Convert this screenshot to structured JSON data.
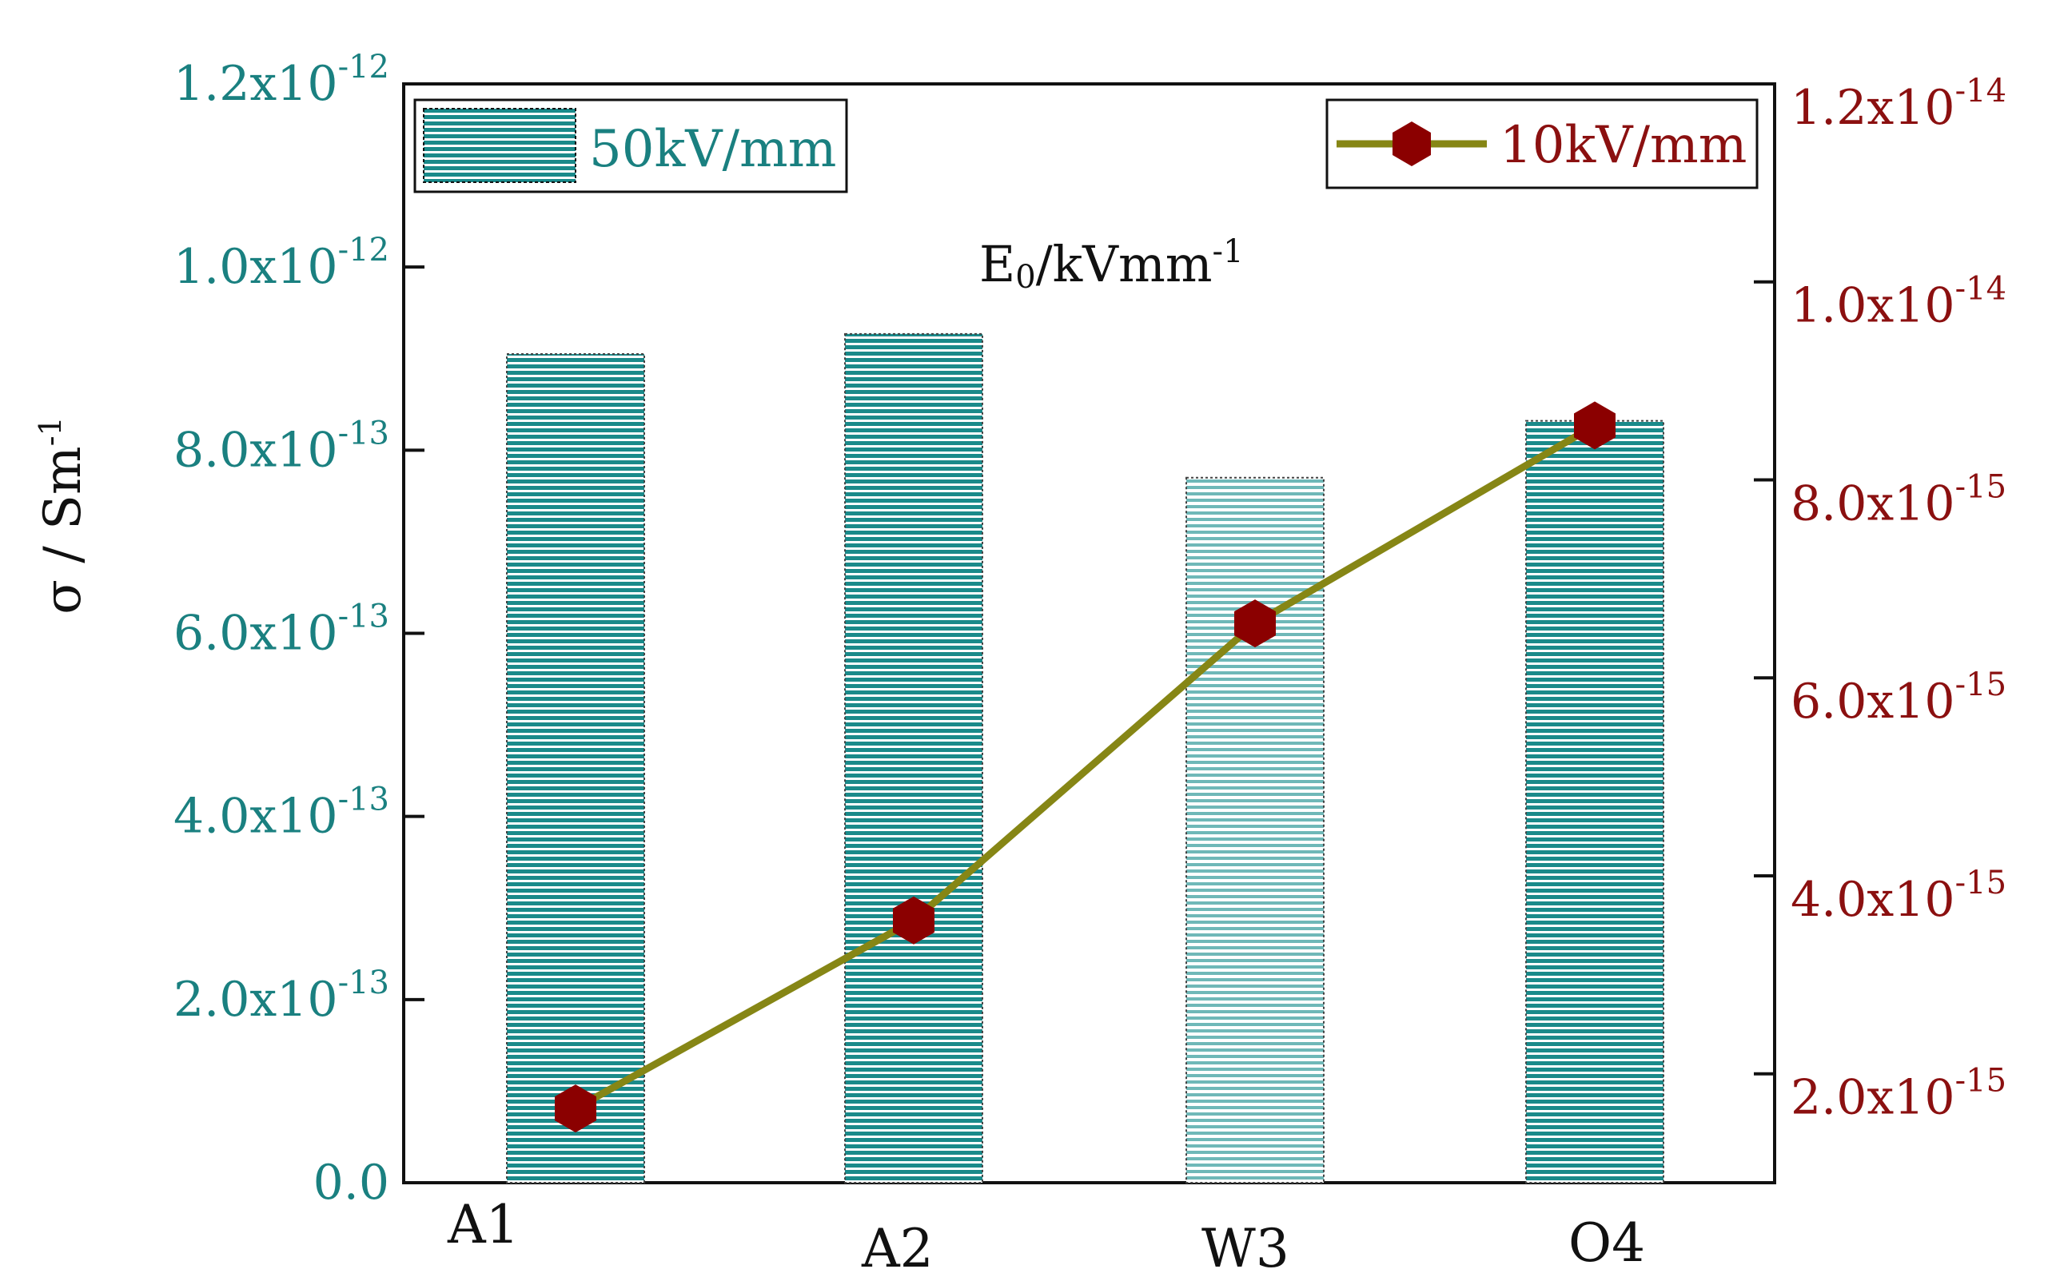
{
  "chart_data": {
    "type": "bar+line",
    "categories": [
      "A1",
      "A2",
      "W3",
      "O4"
    ],
    "series": [
      {
        "name": "50kV/mm",
        "type": "bar",
        "axis": "left",
        "values": [
          9.05e-13,
          9.27e-13,
          7.7e-13,
          8.32e-13
        ],
        "color": "#1a8a8a"
      },
      {
        "name": "10kV/mm",
        "type": "line",
        "axis": "right",
        "values": [
          1.65e-15,
          3.55e-15,
          6.55e-15,
          8.55e-15
        ],
        "line_color": "#868615",
        "marker_color": "#8b0000"
      }
    ],
    "title": "",
    "annotation": {
      "base": "E",
      "sub": "0",
      "rest": "/kVmm",
      "sup": "-1"
    },
    "ylabel": {
      "base": "σ / Sm",
      "sup": "-1"
    },
    "xlabel": "",
    "ylim_left": [
      0,
      1.2e-12
    ],
    "ylim_right": [
      9e-16,
      1.2e-14
    ],
    "yticks_left": [
      {
        "value": 0,
        "mantissa": "0.0",
        "exp": ""
      },
      {
        "value": 2e-13,
        "mantissa": "2.0x10",
        "exp": "-13"
      },
      {
        "value": 4e-13,
        "mantissa": "4.0x10",
        "exp": "-13"
      },
      {
        "value": 6e-13,
        "mantissa": "6.0x10",
        "exp": "-13"
      },
      {
        "value": 8e-13,
        "mantissa": "8.0x10",
        "exp": "-13"
      },
      {
        "value": 1e-12,
        "mantissa": "1.0x10",
        "exp": "-12"
      },
      {
        "value": 1.2e-12,
        "mantissa": "1.2x10",
        "exp": "-12"
      }
    ],
    "yticks_right": [
      {
        "value": 2e-15,
        "mantissa": "2.0x10",
        "exp": "-15"
      },
      {
        "value": 4e-15,
        "mantissa": "4.0x10",
        "exp": "-15"
      },
      {
        "value": 6e-15,
        "mantissa": "6.0x10",
        "exp": "-15"
      },
      {
        "value": 8e-15,
        "mantissa": "8.0x10",
        "exp": "-15"
      },
      {
        "value": 1e-14,
        "mantissa": "1.0x10",
        "exp": "-14"
      },
      {
        "value": 1.2e-14,
        "mantissa": "1.2x10",
        "exp": "-14"
      }
    ],
    "legend": {
      "left": {
        "label": "50kV/mm",
        "placement": "top-left"
      },
      "right": {
        "label": "10kV/mm",
        "placement": "top-right"
      }
    },
    "colors": {
      "left_axis": "#1a8080",
      "right_axis": "#8b1010",
      "bar_fill": "#1a8a8a",
      "line": "#868615",
      "marker": "#8b0000"
    }
  }
}
